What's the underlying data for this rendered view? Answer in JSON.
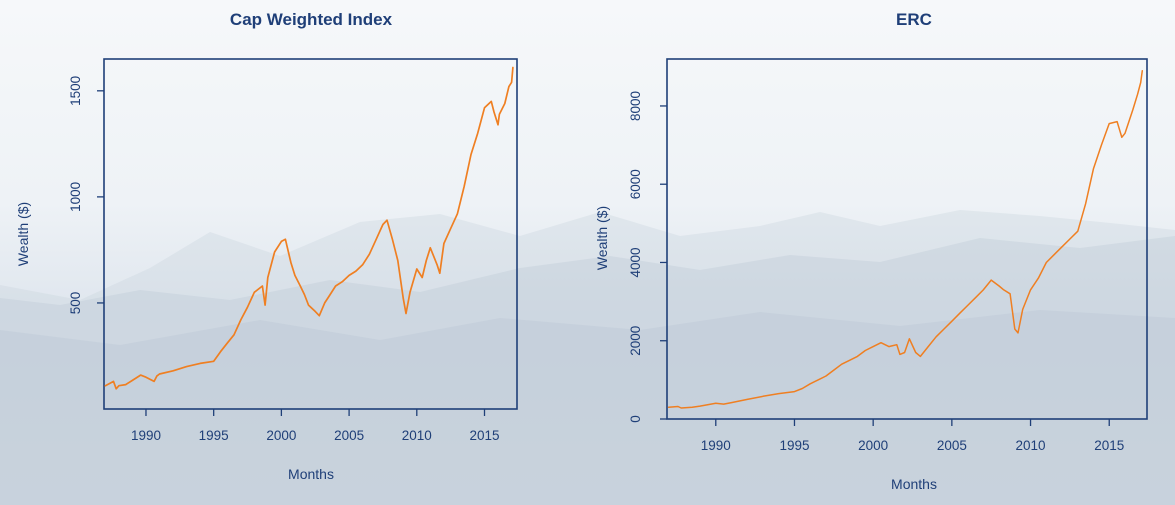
{
  "chart_data": [
    {
      "type": "line",
      "title": "Cap Weighted Index",
      "xlabel": "Months",
      "ylabel": "Wealth ($)",
      "xlim": [
        1986.9,
        2017.4
      ],
      "ylim": [
        0,
        1650
      ],
      "xticks": [
        1990,
        1995,
        2000,
        2005,
        2010,
        2015
      ],
      "yticks": [
        500,
        1000,
        1500
      ],
      "grid": false,
      "line_color": "#ef7f22",
      "series": [
        {
          "x": [
            1987.0,
            1987.6,
            1987.8,
            1988.0,
            1988.5,
            1989.0,
            1989.6,
            1990.0,
            1990.6,
            1990.8,
            1991.0,
            1992.0,
            1993.0,
            1994.0,
            1995.0,
            1995.5,
            1996.0,
            1996.5,
            1997.0,
            1997.5,
            1998.0,
            1998.6,
            1998.8,
            1999.0,
            1999.5,
            2000.0,
            2000.3,
            2000.7,
            2001.0,
            2001.4,
            2001.7,
            2002.0,
            2002.5,
            2002.8,
            2003.2,
            2003.5,
            2004.0,
            2004.5,
            2005.0,
            2005.5,
            2006.0,
            2006.5,
            2007.0,
            2007.5,
            2007.8,
            2008.2,
            2008.6,
            2009.0,
            2009.2,
            2009.5,
            2010.0,
            2010.4,
            2010.7,
            2011.0,
            2011.5,
            2011.7,
            2012.0,
            2012.5,
            2013.0,
            2013.5,
            2014.0,
            2014.5,
            2015.0,
            2015.5,
            2015.7,
            2016.0,
            2016.1,
            2016.5,
            2016.8,
            2017.0,
            2017.1
          ],
          "y": [
            110,
            130,
            95,
            110,
            115,
            135,
            160,
            150,
            130,
            155,
            165,
            180,
            200,
            215,
            225,
            270,
            310,
            350,
            420,
            480,
            550,
            580,
            490,
            620,
            740,
            790,
            800,
            690,
            630,
            580,
            540,
            490,
            460,
            440,
            500,
            530,
            580,
            600,
            630,
            650,
            680,
            730,
            800,
            870,
            890,
            800,
            700,
            520,
            450,
            550,
            660,
            620,
            700,
            760,
            680,
            640,
            780,
            850,
            920,
            1050,
            1200,
            1300,
            1420,
            1450,
            1400,
            1340,
            1390,
            1440,
            1520,
            1540,
            1610
          ]
        }
      ]
    },
    {
      "type": "line",
      "title": "ERC",
      "xlabel": "Months",
      "ylabel": "Wealth ($)",
      "xlim": [
        1986.9,
        2017.4
      ],
      "ylim": [
        0,
        9200
      ],
      "xticks": [
        1990,
        1995,
        2000,
        2005,
        2010,
        2015
      ],
      "yticks": [
        0,
        2000,
        4000,
        6000,
        8000
      ],
      "grid": false,
      "line_color": "#ef7f22",
      "series": [
        {
          "x": [
            1987.0,
            1987.6,
            1987.8,
            1988.5,
            1989.0,
            1990.0,
            1990.5,
            1991.0,
            1992.0,
            1993.0,
            1994.0,
            1995.0,
            1995.5,
            1996.0,
            1996.5,
            1997.0,
            1997.5,
            1998.0,
            1998.5,
            1999.0,
            1999.5,
            2000.0,
            2000.5,
            2001.0,
            2001.5,
            2001.7,
            2002.0,
            2002.3,
            2002.7,
            2003.0,
            2003.5,
            2004.0,
            2004.5,
            2005.0,
            2005.5,
            2006.0,
            2006.5,
            2007.0,
            2007.5,
            2008.0,
            2008.3,
            2008.7,
            2009.0,
            2009.2,
            2009.5,
            2010.0,
            2010.5,
            2011.0,
            2011.5,
            2012.0,
            2012.5,
            2013.0,
            2013.5,
            2014.0,
            2014.5,
            2015.0,
            2015.5,
            2015.8,
            2016.0,
            2016.5,
            2016.8,
            2017.0,
            2017.1
          ],
          "y": [
            300,
            320,
            280,
            300,
            330,
            400,
            380,
            420,
            500,
            580,
            650,
            700,
            780,
            900,
            1000,
            1100,
            1250,
            1400,
            1500,
            1600,
            1750,
            1850,
            1950,
            1850,
            1900,
            1650,
            1700,
            2050,
            1700,
            1600,
            1850,
            2100,
            2300,
            2500,
            2700,
            2900,
            3100,
            3300,
            3550,
            3400,
            3300,
            3200,
            2300,
            2200,
            2800,
            3300,
            3600,
            4000,
            4200,
            4400,
            4600,
            4800,
            5500,
            6400,
            7000,
            7550,
            7600,
            7200,
            7300,
            7900,
            8300,
            8600,
            8900
          ]
        }
      ]
    }
  ]
}
